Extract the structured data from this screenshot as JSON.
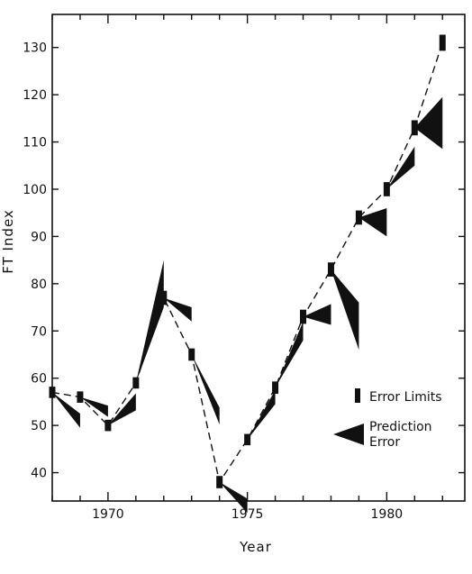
{
  "chart_data": {
    "type": "line",
    "title": "",
    "xlabel": "Year",
    "ylabel": "FT Index",
    "xlim": [
      1968,
      1982.8
    ],
    "ylim": [
      34,
      137
    ],
    "x_ticks": [
      1970,
      1975,
      1980
    ],
    "y_ticks": [
      40,
      50,
      60,
      70,
      80,
      90,
      100,
      110,
      120,
      130
    ],
    "grid": false,
    "legend": {
      "placement": "lower-right",
      "entries": [
        {
          "symbol": "bar",
          "label_lines": [
            "Error Limits"
          ]
        },
        {
          "symbol": "wedge",
          "label_lines": [
            "Prediction",
            "Error"
          ]
        }
      ]
    },
    "series": [
      {
        "style": "dashed-line-with-error-bars",
        "x": [
          1968,
          1969,
          1970,
          1971,
          1972,
          1973,
          1974,
          1975,
          1976,
          1977,
          1978,
          1979,
          1980,
          1981,
          1982
        ],
        "y": [
          57,
          56,
          50,
          59,
          77,
          65,
          38,
          47,
          58,
          73,
          83,
          94,
          100,
          113,
          131
        ],
        "error": [
          1.2,
          1.2,
          1.2,
          1.2,
          1.5,
          1.3,
          1.3,
          1.2,
          1.3,
          1.5,
          1.5,
          1.5,
          1.5,
          1.6,
          1.7
        ]
      },
      {
        "style": "prediction-wedges",
        "wedges": [
          {
            "from": [
              1968,
              57
            ],
            "to": [
              1969,
              51
            ],
            "half_width": 1.5
          },
          {
            "from": [
              1969,
              56
            ],
            "to": [
              1970,
              53
            ],
            "half_width": 1.2
          },
          {
            "from": [
              1970,
              50
            ],
            "to": [
              1971,
              55
            ],
            "half_width": 1.8
          },
          {
            "from": [
              1971,
              59
            ],
            "to": [
              1972,
              80
            ],
            "half_width": 5
          },
          {
            "from": [
              1972,
              77
            ],
            "to": [
              1973,
              73.5
            ],
            "half_width": 1.5
          },
          {
            "from": [
              1973,
              65
            ],
            "to": [
              1974,
              52
            ],
            "half_width": 1.8
          },
          {
            "from": [
              1974,
              38
            ],
            "to": [
              1975,
              33
            ],
            "half_width": 1.5
          },
          {
            "from": [
              1975,
              47
            ],
            "to": [
              1976,
              56
            ],
            "half_width": 1.5
          },
          {
            "from": [
              1976,
              58
            ],
            "to": [
              1977,
              70
            ],
            "half_width": 2
          },
          {
            "from": [
              1977,
              73
            ],
            "to": [
              1978,
              73.5
            ],
            "half_width": 2.2
          },
          {
            "from": [
              1978,
              83
            ],
            "to": [
              1979,
              71
            ],
            "half_width": 5
          },
          {
            "from": [
              1979,
              94
            ],
            "to": [
              1980,
              93
            ],
            "half_width": 3
          },
          {
            "from": [
              1980,
              100
            ],
            "to": [
              1981,
              107
            ],
            "half_width": 2
          },
          {
            "from": [
              1981,
              113
            ],
            "to": [
              1982,
              114
            ],
            "half_width": 5.5
          }
        ]
      }
    ]
  }
}
